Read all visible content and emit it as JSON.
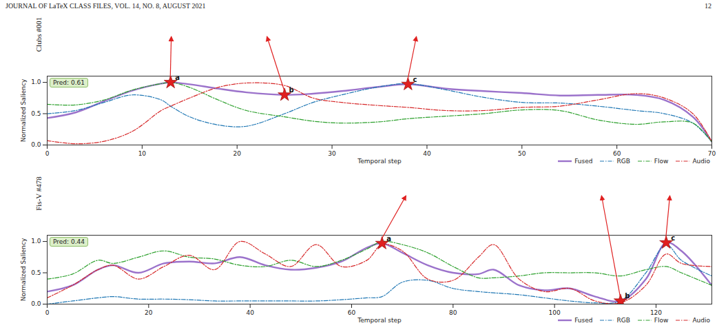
{
  "header": {
    "journal": "JOURNAL OF LaTeX CLASS FILES, VOL. 14, NO. 8, AUGUST 2021",
    "page": "12"
  },
  "chart_data": [
    {
      "type": "line",
      "title": "Clubs #001",
      "prediction": "Pred: 0.61",
      "x_label": "Temporal step",
      "y_label": "Normalized Saliency",
      "x": [
        0,
        3,
        6,
        9,
        12,
        13,
        15,
        18,
        21,
        25,
        28,
        31,
        35,
        38,
        42,
        46,
        50,
        54,
        58,
        62,
        65,
        68,
        70
      ],
      "series": [
        {
          "name": "Fused",
          "color": "#9b72cb",
          "line_style": "solid",
          "values": [
            0.43,
            0.52,
            0.7,
            0.87,
            0.98,
            1.0,
            0.97,
            0.9,
            0.84,
            0.8,
            0.82,
            0.86,
            0.93,
            0.97,
            0.9,
            0.86,
            0.83,
            0.79,
            0.8,
            0.8,
            0.72,
            0.45,
            0.05
          ]
        },
        {
          "name": "RGB",
          "color": "#1f77b4",
          "line_style": "dashdot",
          "values": [
            0.5,
            0.55,
            0.68,
            0.8,
            0.72,
            0.62,
            0.45,
            0.32,
            0.3,
            0.5,
            0.68,
            0.8,
            0.93,
            0.98,
            0.88,
            0.76,
            0.68,
            0.67,
            0.62,
            0.55,
            0.5,
            0.35,
            0.05
          ]
        },
        {
          "name": "Flow",
          "color": "#2ca02c",
          "line_style": "dashdot",
          "values": [
            0.65,
            0.64,
            0.72,
            0.88,
            0.98,
            1.0,
            0.92,
            0.72,
            0.55,
            0.45,
            0.38,
            0.35,
            0.37,
            0.42,
            0.46,
            0.5,
            0.56,
            0.55,
            0.4,
            0.33,
            0.37,
            0.35,
            0.05
          ]
        },
        {
          "name": "Audio",
          "color": "#d62728",
          "line_style": "dashdot",
          "values": [
            0.07,
            0.02,
            0.06,
            0.22,
            0.55,
            0.62,
            0.75,
            0.92,
            0.99,
            0.95,
            0.75,
            0.68,
            0.63,
            0.6,
            0.55,
            0.55,
            0.6,
            0.62,
            0.72,
            0.82,
            0.75,
            0.5,
            0.05
          ]
        }
      ],
      "xlim": [
        0,
        70
      ],
      "xticks": [
        0,
        10,
        20,
        30,
        40,
        50,
        60,
        70
      ],
      "ylim": [
        0,
        1.1
      ],
      "yticks": [
        {
          "value": 0,
          "label": "0.0"
        },
        {
          "value": 0.5,
          "label": "0.5"
        },
        {
          "value": 1,
          "label": "1.0"
        }
      ],
      "grid": false,
      "legend": "bottom right",
      "annotations": [
        {
          "x": 13,
          "y": 1.0,
          "text": "a"
        },
        {
          "x": 25,
          "y": 0.8,
          "text": "b"
        },
        {
          "x": 38,
          "y": 0.97,
          "text": "c"
        }
      ]
    },
    {
      "type": "line",
      "title": "Fis-V #478",
      "prediction": "Pred: 0.44",
      "x_label": "Temporal step",
      "y_label": "Normalized Saliency",
      "x": [
        0,
        5,
        10,
        13,
        18,
        23,
        28,
        33,
        38,
        43,
        48,
        53,
        58,
        63,
        66,
        70,
        75,
        80,
        85,
        88,
        93,
        98,
        103,
        108,
        113,
        118,
        122,
        125,
        131
      ],
      "series": [
        {
          "name": "Fused",
          "color": "#9b72cb",
          "line_style": "solid",
          "values": [
            0.2,
            0.3,
            0.55,
            0.62,
            0.5,
            0.65,
            0.68,
            0.65,
            0.75,
            0.62,
            0.55,
            0.58,
            0.68,
            0.9,
            0.97,
            0.82,
            0.62,
            0.5,
            0.48,
            0.55,
            0.3,
            0.22,
            0.25,
            0.12,
            0.05,
            0.4,
            0.98,
            0.85,
            0.3
          ]
        },
        {
          "name": "RGB",
          "color": "#1f77b4",
          "line_style": "dashdot",
          "values": [
            0.0,
            0.05,
            0.1,
            0.12,
            0.08,
            0.08,
            0.07,
            0.05,
            0.05,
            0.05,
            0.05,
            0.05,
            0.07,
            0.1,
            0.12,
            0.35,
            0.38,
            0.25,
            0.2,
            0.18,
            0.15,
            0.1,
            0.05,
            0.02,
            0.05,
            0.5,
            0.95,
            0.7,
            0.45
          ]
        },
        {
          "name": "Flow",
          "color": "#2ca02c",
          "line_style": "dashdot",
          "values": [
            0.4,
            0.48,
            0.7,
            0.65,
            0.75,
            0.85,
            0.75,
            0.72,
            0.62,
            0.6,
            0.7,
            0.6,
            0.7,
            0.88,
            1.0,
            0.95,
            0.82,
            0.6,
            0.42,
            0.42,
            0.45,
            0.5,
            0.5,
            0.5,
            0.45,
            0.55,
            0.6,
            0.5,
            0.3
          ]
        },
        {
          "name": "Audio",
          "color": "#d62728",
          "line_style": "dashdot",
          "values": [
            0.1,
            0.3,
            0.55,
            0.62,
            0.4,
            0.6,
            0.78,
            0.55,
            1.0,
            0.8,
            0.6,
            0.95,
            0.6,
            0.7,
            0.95,
            0.85,
            0.4,
            0.38,
            0.75,
            0.95,
            0.4,
            0.2,
            0.25,
            0.05,
            0.02,
            0.3,
            0.8,
            0.65,
            0.6
          ]
        }
      ],
      "xlim": [
        0,
        131
      ],
      "xticks": [
        0,
        20,
        40,
        60,
        80,
        100,
        120
      ],
      "ylim": [
        0,
        1.1
      ],
      "yticks": [
        {
          "value": 0,
          "label": "0.0"
        },
        {
          "value": 0.5,
          "label": "0.5"
        },
        {
          "value": 1,
          "label": "1.0"
        }
      ],
      "grid": false,
      "legend": "bottom right",
      "annotations": [
        {
          "x": 66,
          "y": 0.97,
          "text": "a"
        },
        {
          "x": 113,
          "y": 0.05,
          "text": "b"
        },
        {
          "x": 122,
          "y": 0.98,
          "text": "c"
        }
      ]
    }
  ]
}
